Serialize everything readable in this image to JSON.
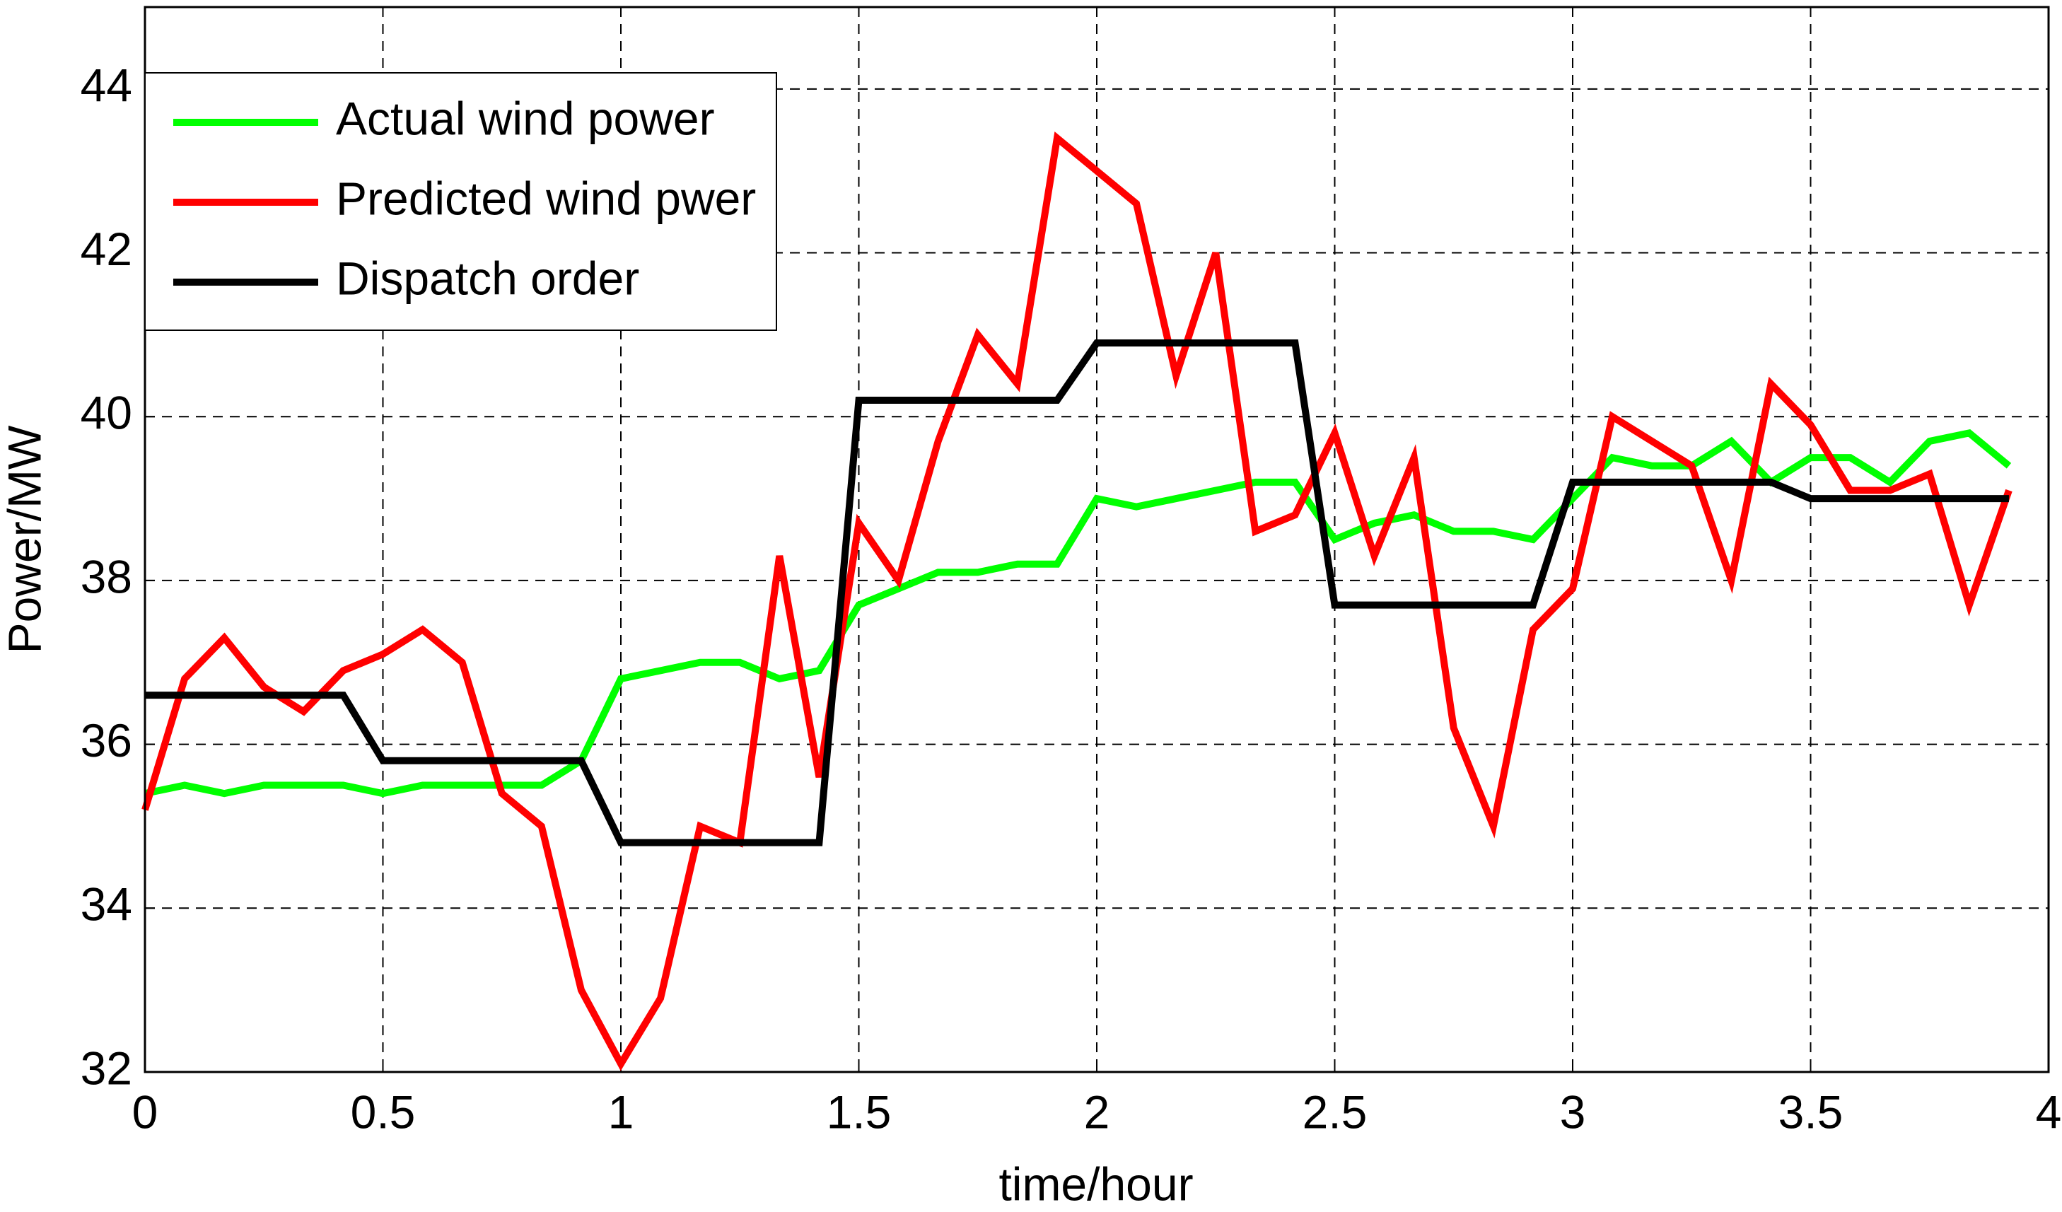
{
  "chart_data": {
    "type": "line",
    "x_label": "time/hour",
    "y_label": "Power/MW",
    "x": [
      0,
      0.0833,
      0.1667,
      0.25,
      0.3333,
      0.4167,
      0.5,
      0.5833,
      0.6667,
      0.75,
      0.8333,
      0.9167,
      1,
      1.0833,
      1.1667,
      1.25,
      1.3333,
      1.4167,
      1.5,
      1.5833,
      1.6667,
      1.75,
      1.8333,
      1.9167,
      2,
      2.0833,
      2.1667,
      2.25,
      2.3333,
      2.4167,
      2.5,
      2.5833,
      2.6667,
      2.75,
      2.8333,
      2.9167,
      3,
      3.0833,
      3.1667,
      3.25,
      3.3333,
      3.4167,
      3.5,
      3.5833,
      3.6667,
      3.75,
      3.8333,
      3.9167
    ],
    "series": [
      {
        "name": "Actual wind power",
        "color": "#00ff00",
        "values": [
          35.4,
          35.5,
          35.4,
          35.5,
          35.5,
          35.5,
          35.4,
          35.5,
          35.5,
          35.5,
          35.5,
          35.8,
          36.8,
          36.9,
          37.0,
          37.0,
          36.8,
          36.9,
          37.7,
          37.9,
          38.1,
          38.1,
          38.2,
          38.2,
          39.0,
          38.9,
          39.0,
          39.1,
          39.2,
          39.2,
          38.5,
          38.7,
          38.8,
          38.6,
          38.6,
          38.5,
          39.0,
          39.5,
          39.4,
          39.4,
          39.7,
          39.2,
          39.5,
          39.5,
          39.2,
          39.7,
          39.8,
          39.4
        ]
      },
      {
        "name": "Predicted wind pwer",
        "color": "#ff0000",
        "values": [
          35.2,
          36.8,
          37.3,
          36.7,
          36.4,
          36.9,
          37.1,
          37.4,
          37.0,
          35.4,
          35.0,
          33.0,
          32.1,
          32.9,
          35.0,
          34.8,
          38.3,
          35.6,
          38.7,
          38.0,
          39.7,
          41.0,
          40.4,
          43.4,
          43.0,
          42.6,
          40.5,
          42.0,
          38.6,
          38.8,
          39.8,
          38.3,
          39.5,
          36.2,
          35.0,
          37.4,
          37.9,
          40.0,
          39.7,
          39.4,
          38.0,
          40.4,
          39.9,
          39.1,
          39.1,
          39.3,
          37.7,
          39.1
        ]
      },
      {
        "name": "Dispatch order",
        "color": "#000000",
        "values": [
          36.6,
          36.6,
          36.6,
          36.6,
          36.6,
          36.6,
          35.8,
          35.8,
          35.8,
          35.8,
          35.8,
          35.8,
          34.8,
          34.8,
          34.8,
          34.8,
          34.8,
          34.8,
          40.2,
          40.2,
          40.2,
          40.2,
          40.2,
          40.2,
          40.9,
          40.9,
          40.9,
          40.9,
          40.9,
          40.9,
          37.7,
          37.7,
          37.7,
          37.7,
          37.7,
          37.7,
          39.2,
          39.2,
          39.2,
          39.2,
          39.2,
          39.2,
          39.0,
          39.0,
          39.0,
          39.0,
          39.0,
          39.0
        ]
      }
    ],
    "xlim": [
      0,
      4
    ],
    "xticks": [
      0,
      0.5,
      1,
      1.5,
      2,
      2.5,
      3,
      3.5,
      4
    ],
    "ylim": [
      32,
      45
    ],
    "yticks": [
      32,
      34,
      36,
      38,
      40,
      42,
      44
    ],
    "grid": true,
    "legend": "upper left"
  }
}
